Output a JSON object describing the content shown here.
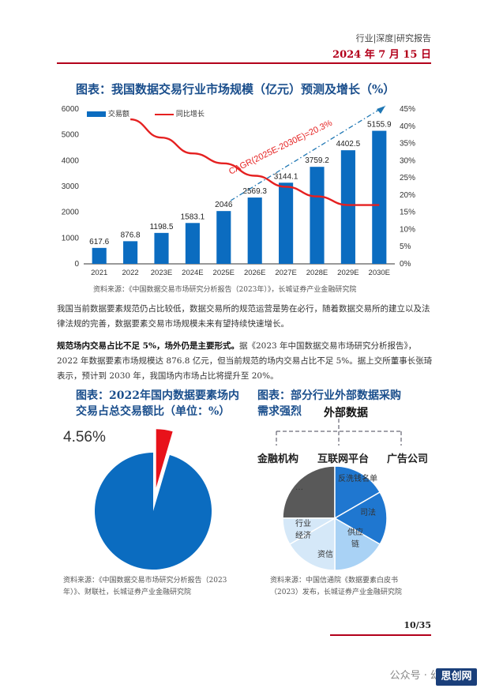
{
  "header": {
    "tag": "行业|深度|研究报告",
    "date": "2024 年 7 月 15 日"
  },
  "chart1": {
    "title": "图表：我国数据交易行业市场规模（亿元）预测及增长（%）",
    "legend_bar": "交易额",
    "legend_line": "同比增长",
    "cagr_label": "CAGR(2025E-2030E)=20.3%",
    "source": "资料来源：《中国数据交易市场研究分析报告（2023年）》，长城证券产业金融研究院"
  },
  "chart_data": {
    "type": "bar",
    "categories": [
      "2021",
      "2022",
      "2023E",
      "2024E",
      "2025E",
      "2026E",
      "2027E",
      "2028E",
      "2029E",
      "2030E"
    ],
    "series": [
      {
        "name": "交易额",
        "type": "bar",
        "axis": "left",
        "values": [
          617.6,
          876.8,
          1198.5,
          1583.1,
          2046,
          2569.3,
          3144.1,
          3759.2,
          4402.5,
          5155.9
        ],
        "labels": [
          "617.6",
          "876.8",
          "1198.5",
          "1583.1",
          "2046",
          "2569.3",
          "3144.1",
          "3759.2",
          "4402.5",
          "5155.9"
        ]
      },
      {
        "name": "同比增长",
        "type": "line",
        "axis": "right",
        "values": [
          null,
          42,
          36.7,
          32.1,
          29.2,
          25.6,
          22.4,
          19.6,
          17.1,
          17.1
        ]
      }
    ],
    "ylim": [
      0,
      6000
    ],
    "yticks": [
      "0",
      "1000",
      "2000",
      "3000",
      "4000",
      "5000",
      "6000"
    ],
    "y2lim": [
      0,
      45
    ],
    "y2ticks": [
      "0%",
      "5%",
      "10%",
      "15%",
      "20%",
      "25%",
      "30%",
      "35%",
      "40%",
      "45%"
    ],
    "legend_position": "top-left",
    "colors": {
      "bar": "#0b6cc0",
      "line": "#e52020",
      "cagr": "#1f77b4"
    }
  },
  "para1": "我国当前数据要素规范仍占比较低，数据交易所的规范运营是势在必行，随着数据交易所的建立以及法律法规的完善，数据要素交易市场规模未来有望持续快速增长。",
  "para2": {
    "bold": "规范场内交易占比不足 5%，场外仍是主要形式。",
    "rest": "据《2023 年中国数据交易市场研究分析报告》，2022 年数据要素市场规模达 876.8 亿元，但当前规范的场内交易占比不足 5%。据上交所董事长张琦表示，预计到 2030 年，我国场内市场占比将提升至 20%。"
  },
  "chart2": {
    "title_line1": "图表：2022年国内数据要素场内",
    "title_line2": "交易占总交易额比（单位：%）",
    "pct_label": "4.56%",
    "share_pct": 4.56,
    "colors": {
      "main": "#0b6cc0",
      "slice": "#e8121a"
    },
    "source_line1": "资料来源：《中国数据交易市场研究分析报告（2023",
    "source_line2": "年）》、财联社，长城证券产业金融研究院"
  },
  "chart3": {
    "title_line1": "图表：部分行业外部数据采购",
    "title_line2": "需求强烈",
    "subtitle": "外部数据",
    "categories": [
      "金融机构",
      "互联网平台",
      "广告公司"
    ],
    "segments": [
      "…",
      "反洗钱名单",
      "司法",
      "供应链",
      "资信",
      "行业经济"
    ],
    "colors": {
      "dark": "#595959",
      "blue": "#1f77d0",
      "light": "#a9d2f5",
      "pale": "#d5e8f8"
    },
    "source_line1": "资料来源：中国信通院《数据要素白皮书",
    "source_line2": "（2023）发布，长城证券产业金融研究院"
  },
  "page_number": "10/35",
  "watermark": {
    "text": "公众号 · 幻",
    "logo": "思创网"
  }
}
